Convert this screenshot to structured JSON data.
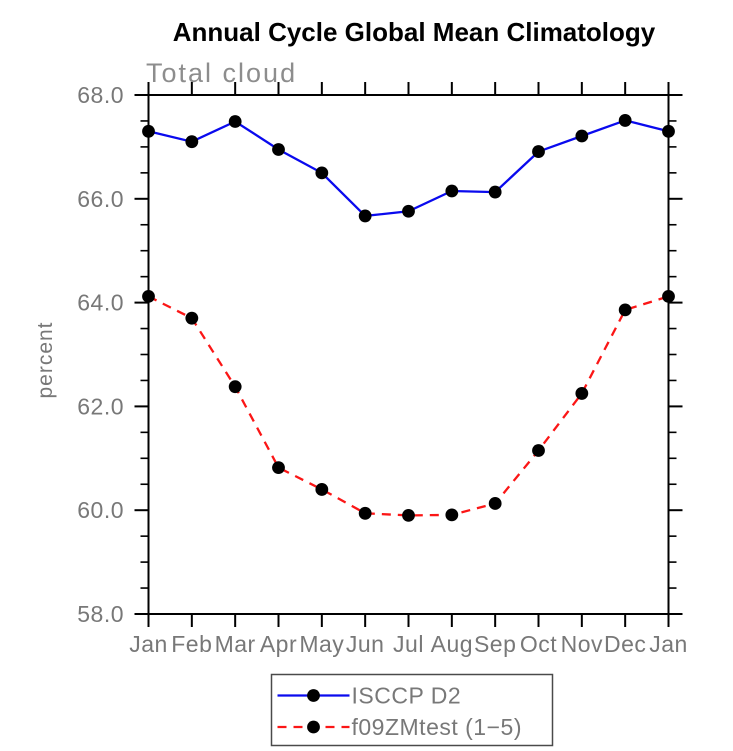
{
  "header": {
    "title": "Annual Cycle Global Mean Climatology",
    "subtitle": "Total cloud"
  },
  "chart_data": {
    "type": "line",
    "x_categories": [
      "Jan",
      "Feb",
      "Mar",
      "Apr",
      "May",
      "Jun",
      "Jul",
      "Aug",
      "Sep",
      "Oct",
      "Nov",
      "Dec",
      "Jan"
    ],
    "ylabel": "percent",
    "ylim": [
      58.0,
      68.0
    ],
    "ytick_interval": 2.0,
    "ytick_minor_interval": 0.5,
    "ytick_labels": [
      "58.0",
      "60.0",
      "62.0",
      "64.0",
      "66.0",
      "68.0"
    ],
    "grid": false,
    "ticks_direction": "outward",
    "legend_position": "bottom-center",
    "series": [
      {
        "name": "ISCCP D2",
        "color": "#0a0aee",
        "line_style": "solid",
        "marker": "filled-circle",
        "marker_color": "#000000",
        "values": [
          67.3,
          67.1,
          67.49,
          66.95,
          66.5,
          65.67,
          65.76,
          66.15,
          66.13,
          66.91,
          67.21,
          67.51,
          67.3
        ]
      },
      {
        "name": "f09ZMtest (1−5)",
        "color": "#fb1616",
        "line_style": "dashed",
        "marker": "filled-circle",
        "marker_color": "#000000",
        "values": [
          64.12,
          63.7,
          62.38,
          60.82,
          60.4,
          59.94,
          59.9,
          59.91,
          60.13,
          61.15,
          62.25,
          63.86,
          64.12
        ]
      }
    ]
  },
  "colors": {
    "axis": "#000000",
    "tick_label": "#787878",
    "subtitle": "#8d8d8d",
    "title": "#000000",
    "legend_border": "#4a4a4a",
    "background": "#ffffff"
  }
}
